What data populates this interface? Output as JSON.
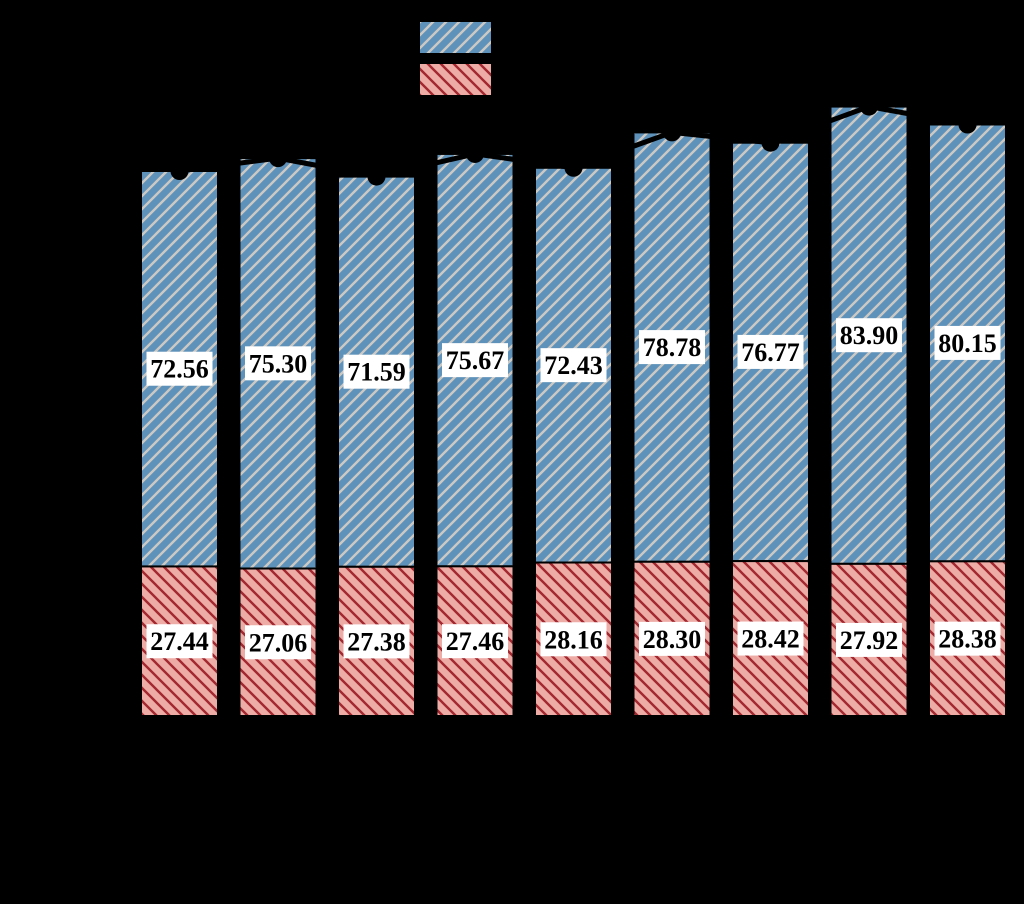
{
  "page": {
    "background_color": "#000000",
    "title": "",
    "notes": "stacked bar chart on black background; axis text not visible"
  },
  "chart_data": {
    "type": "bar",
    "subtype": "stacked-bars-with-total-line-and-markers",
    "title": "",
    "xlabel": "",
    "ylabel": "",
    "tick_labels_visible": false,
    "grid": false,
    "edge_color": "#000000",
    "series": [
      {
        "name": "top-segment-blue-hatched",
        "hatch": "/",
        "fill": "#5e92ba",
        "hatch_color": "#ccc9c4",
        "values": [
          72.56,
          75.3,
          71.59,
          75.67,
          72.43,
          78.78,
          76.77,
          83.9,
          80.15
        ]
      },
      {
        "name": "bottom-segment-red-hatched",
        "hatch": "\\",
        "fill": "#eeaca7",
        "hatch_color": "#a3282f",
        "values": [
          27.44,
          27.06,
          27.38,
          27.46,
          28.16,
          28.3,
          28.42,
          27.92,
          28.38
        ]
      }
    ],
    "totals": [
      100.0,
      102.36,
      98.97,
      103.13,
      100.59,
      107.08,
      105.19,
      111.82,
      108.53
    ],
    "total_line": {
      "color": "#000000",
      "width": 5,
      "marker": "circle",
      "marker_color": "#000000",
      "marker_radius": 9
    },
    "bar_value_labels": {
      "format": "0.00",
      "text_color": "#000000",
      "box_color": "#ffffff"
    },
    "legend": {
      "position": "top-center",
      "labels_visible": false,
      "entries": [
        {
          "swatch": "blue-hatched"
        },
        {
          "swatch": "red-hatched"
        }
      ]
    }
  }
}
